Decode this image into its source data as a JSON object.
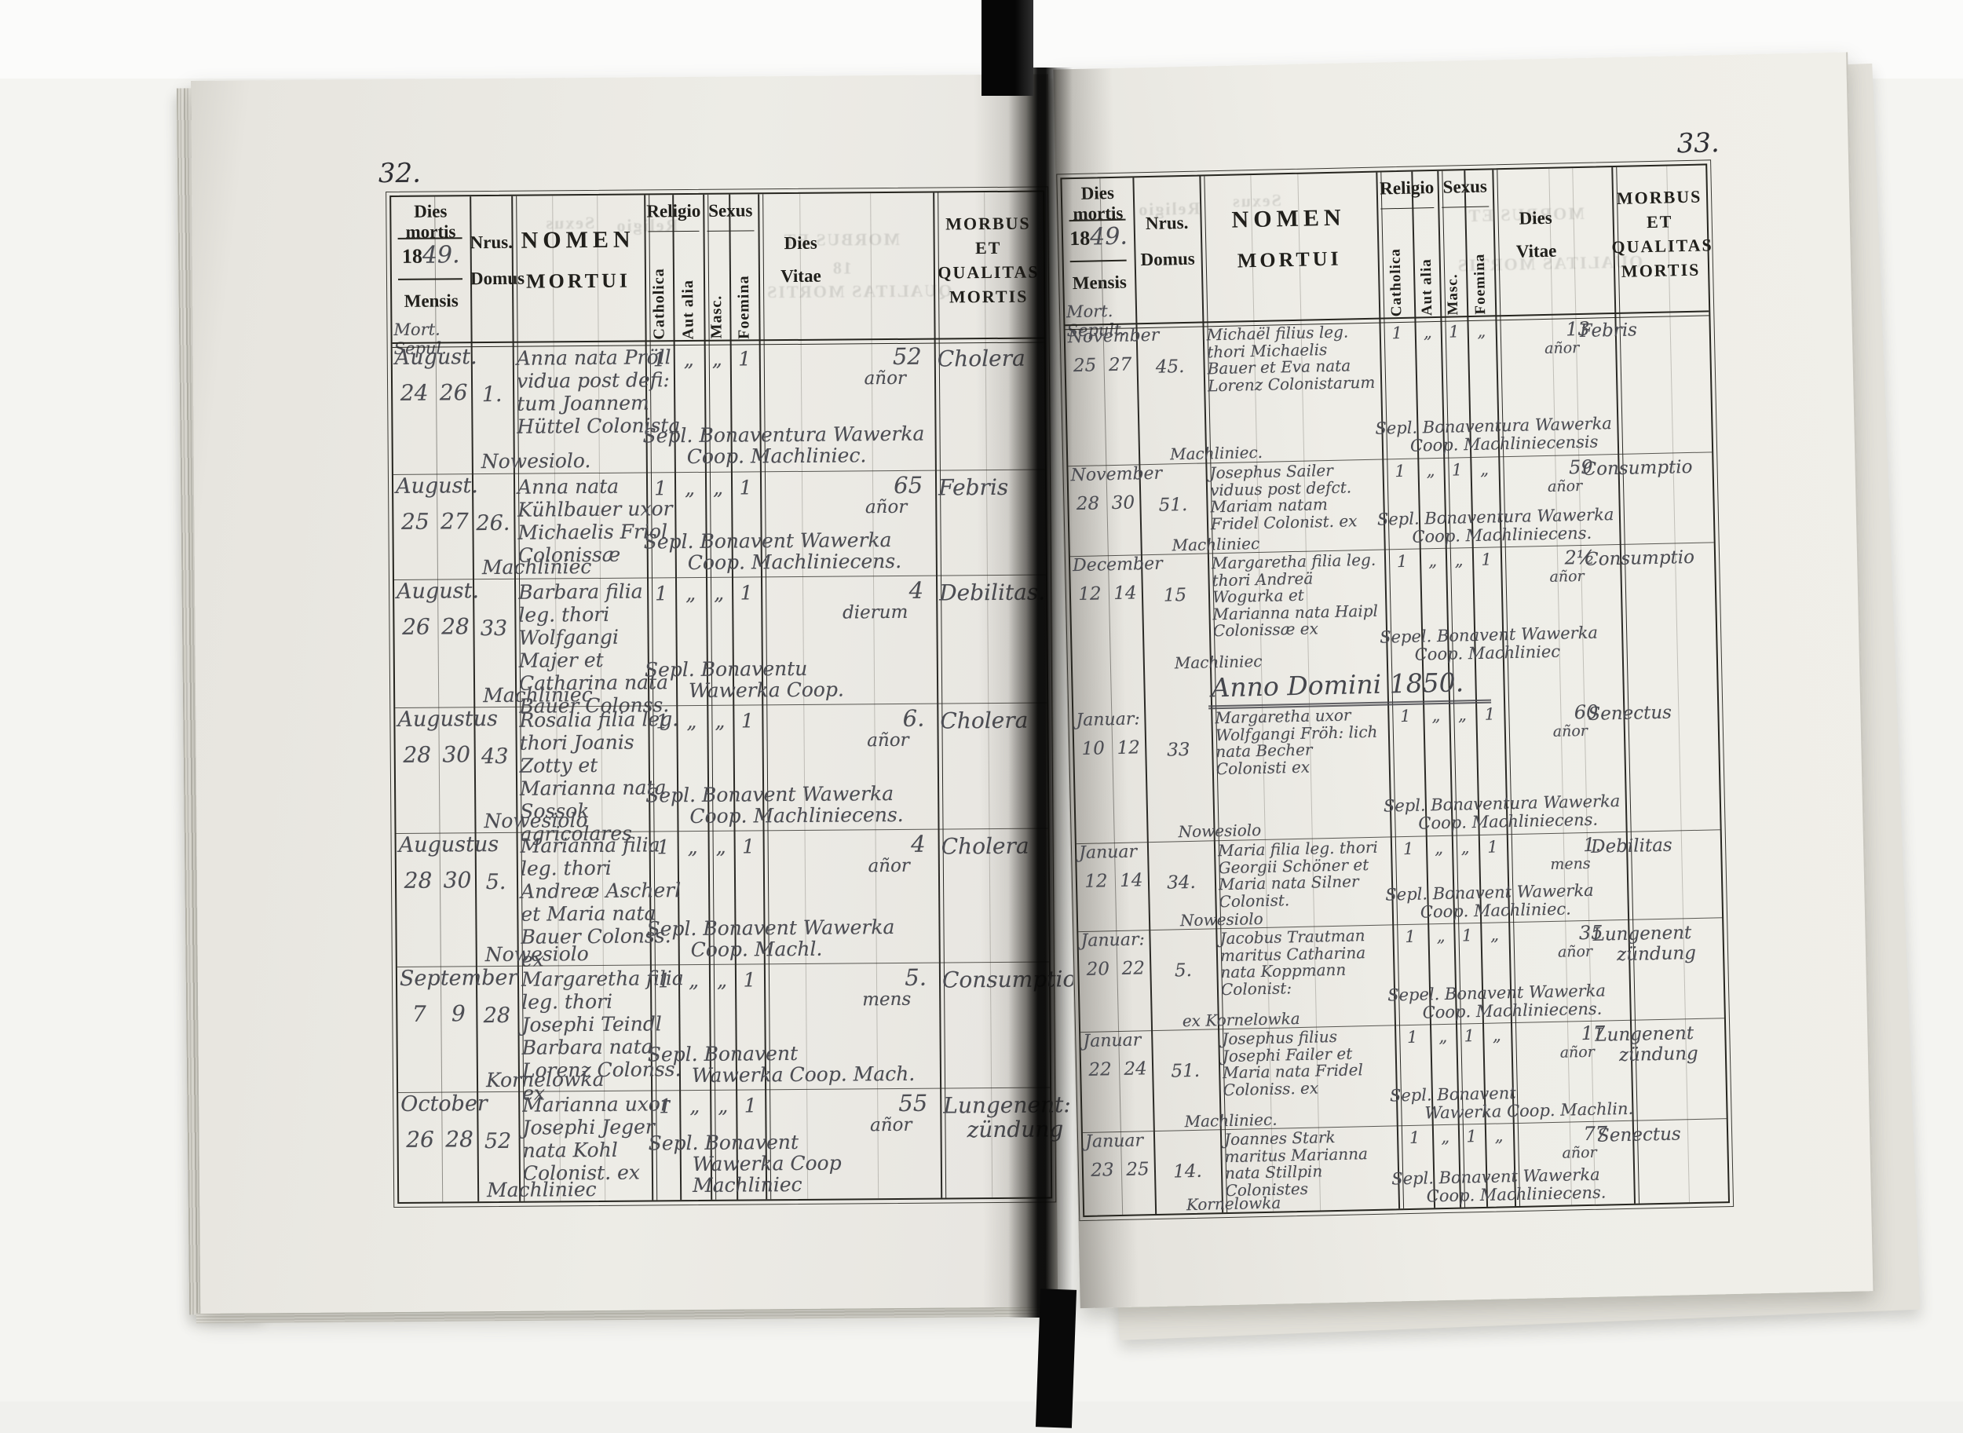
{
  "book": {
    "column_headers": {
      "dies_mortis": "Dies mortis",
      "year_printed": "18",
      "year_handwritten": "49.",
      "mensis": "Mensis",
      "nrus": "Nrus.",
      "domus": "Domus",
      "nomen": "NOMEN",
      "mortui": "MORTUI",
      "religio": "Religio",
      "catholica": "Catholica",
      "aut_alia": "Aut alia",
      "sexus": "Sexus",
      "masc": "Masc.",
      "foemina": "Foemina",
      "dies": "Dies",
      "vitae": "Vitae",
      "morbus_line1": "MORBUS",
      "morbus_line2": "ET",
      "morbus_line3": "QUALITAS",
      "morbus_line4": "MORTIS"
    },
    "left_page": {
      "page_number": "32.",
      "mort_sepul": "Mort. Sepul.",
      "ghosts": [
        "Sexus",
        "Religio",
        "MORBUS ET",
        "18",
        "QUALITAS MORTIS"
      ],
      "rows": [
        {
          "month": "August.",
          "death_day": "24",
          "burial_day": "26",
          "house": "1.",
          "name": "Anna nata Pröll vidua post defi: tum Joannem Hüttel Colonista",
          "place": "Nowesiolo.",
          "catholica": "1",
          "aut_alia": "„",
          "masc": "„",
          "foemina": "1",
          "age": "52",
          "age_unit": "añor",
          "disease": "Cholera",
          "burial": "Sepl. Bonaventura Wawerka\nCoop. Machliniec."
        },
        {
          "month": "August.",
          "death_day": "25",
          "burial_day": "27",
          "house": "26.",
          "name": "Anna nata Kühlbauer uxor Michaelis Friol Colonissæ",
          "place": "Machliniec",
          "catholica": "1",
          "aut_alia": "„",
          "masc": "„",
          "foemina": "1",
          "age": "65",
          "age_unit": "añor",
          "disease": "Febris",
          "burial": "Sepl. Bonavent Wawerka\nCoop. Machliniecens."
        },
        {
          "month": "August.",
          "death_day": "26",
          "burial_day": "28",
          "house": "33",
          "name": "Barbara filia leg. thori Wolfgangi Majer et Catharina nata Bauer Colonss.",
          "place": "Machliniec",
          "catholica": "1",
          "aut_alia": "„",
          "masc": "„",
          "foemina": "1",
          "age": "4",
          "age_unit": "dierum",
          "disease": "Debilitas.",
          "burial": "Sepl. Bonaventu\nWawerka Coop."
        },
        {
          "month": "Augustus",
          "death_day": "28",
          "burial_day": "30",
          "house": "43",
          "name": "Rosalia filia leg. thori Joanis Zotty et Marianna nata Sossok agricolares",
          "place": "Nowesiolo",
          "catholica": "1",
          "aut_alia": "„",
          "masc": "„",
          "foemina": "1",
          "age": "6.",
          "age_unit": "añor",
          "disease": "Cholera",
          "burial": "Sepl. Bonavent Wawerka\nCoop. Machliniecens."
        },
        {
          "month": "Augustus",
          "death_day": "28",
          "burial_day": "30",
          "house": "5.",
          "name": "Marianna filia leg. thori Andreæ Ascherl et Maria nata Bauer Colonss. ex",
          "place": "Nowesiolo",
          "catholica": "1",
          "aut_alia": "„",
          "masc": "„",
          "foemina": "1",
          "age": "4",
          "age_unit": "añor",
          "disease": "Cholera",
          "burial": "Sepl. Bonavent Wawerka\nCoop. Machl."
        },
        {
          "month": "September",
          "death_day": "7",
          "burial_day": "9",
          "house": "28",
          "name": "Margaretha filia leg. thori Josephi Teindl Barbara nata Lorenz Colonss. ex",
          "place": "Kornelowka",
          "catholica": "1",
          "aut_alia": "„",
          "masc": "„",
          "foemina": "1",
          "age": "5.",
          "age_unit": "mens",
          "disease": "Consumptio",
          "burial": "Sepl. Bonavent\nWawerka Coop. Mach."
        },
        {
          "month": "October",
          "death_day": "26",
          "burial_day": "28",
          "house": "52",
          "name": "Marianna uxor Josephi Jeger nata Kohl Colonist. ex",
          "place": "Machliniec",
          "catholica": "1",
          "aut_alia": "„",
          "masc": "„",
          "foemina": "1",
          "age": "55",
          "age_unit": "añor",
          "disease": "Lungenent:\nzündung",
          "burial": "Sepl. Bonavent\nWawerka Coop Machliniec"
        }
      ]
    },
    "right_page": {
      "page_number": "33.",
      "mort_sepul": "Mort. Sepult.",
      "year_divider": "Anno Domini 1850.",
      "ghosts": [
        "Religio",
        "Sexus",
        "MORBUS ET",
        "QUALITAS MORTIS"
      ],
      "rows_1849": [
        {
          "month": "November",
          "death_day": "25",
          "burial_day": "27",
          "house": "45.",
          "name": "Michaël filius leg. thori Michaelis Bauer et Eva nata Lorenz Colonistarum",
          "place": "Machliniec.",
          "catholica": "1",
          "aut_alia": "„",
          "masc": "1",
          "foemina": "„",
          "age": "13",
          "age_unit": "añor",
          "disease": "Febris",
          "burial": "Sepl. Bonaventura Wawerka\nCoop. Machliniecensis"
        },
        {
          "month": "November",
          "death_day": "28",
          "burial_day": "30",
          "house": "51.",
          "name": "Josephus Sailer viduus post defct. Mariam natam Fridel Colonist. ex",
          "place": "Machliniec",
          "catholica": "1",
          "aut_alia": "„",
          "masc": "1",
          "foemina": "„",
          "age": "59",
          "age_unit": "añor",
          "disease": "Consumptio",
          "burial": "Sepl. Bonaventura Wawerka\nCoop. Machliniecens."
        },
        {
          "month": "December",
          "death_day": "12",
          "burial_day": "14",
          "house": "15",
          "name": "Margaretha filia leg. thori Andreä Wogurka et Marianna nata Haipl Colonissæ ex",
          "place": "Machliniec",
          "catholica": "1",
          "aut_alia": "„",
          "masc": "„",
          "foemina": "1",
          "age": "2½",
          "age_unit": "añor",
          "disease": "Consumptio",
          "burial": "Sepel. Bonavent Wawerka\nCoop. Machliniec"
        }
      ],
      "rows_1850": [
        {
          "month": "Januar:",
          "death_day": "10",
          "burial_day": "12",
          "house": "33",
          "name": "Margaretha uxor Wolfgangi Fröh: lich nata Becher Colonisti ex",
          "place": "Nowesiolo",
          "catholica": "1",
          "aut_alia": "„",
          "masc": "„",
          "foemina": "1",
          "age": "60",
          "age_unit": "añor",
          "disease": "Senectus",
          "burial": "Sepl. Bonaventura Wawerka\nCoop. Machliniecens."
        },
        {
          "month": "Januar",
          "death_day": "12",
          "burial_day": "14",
          "house": "34.",
          "name": "Maria filia leg. thori Georgii Schöner et Maria nata Silner Colonist.",
          "place": "Nowesiolo",
          "catholica": "1",
          "aut_alia": "„",
          "masc": "„",
          "foemina": "1",
          "age": "1.",
          "age_unit": "mens",
          "disease": "Debilitas",
          "burial": "Sepl. Bonavent Wawerka\nCoop. Machliniec."
        },
        {
          "month": "Januar:",
          "death_day": "20",
          "burial_day": "22",
          "house": "5.",
          "name": "Jacobus Trautman maritus Catharina nata Koppmann Colonist:",
          "place": "ex Kornelowka",
          "catholica": "1",
          "aut_alia": "„",
          "masc": "1",
          "foemina": "„",
          "age": "35",
          "age_unit": "añor",
          "disease": "Lungenent\nzündung",
          "burial": "Sepel. Bonavent Wawerka\nCoop. Machliniecens."
        },
        {
          "month": "Januar",
          "death_day": "22",
          "burial_day": "24",
          "house": "51.",
          "name": "Josephus filius Josephi Failer et Maria nata Fridel Coloniss. ex",
          "place": "Machliniec.",
          "catholica": "1",
          "aut_alia": "„",
          "masc": "1",
          "foemina": "„",
          "age": "17",
          "age_unit": "añor",
          "disease": "Lungenent\nzündung",
          "burial": "Sepl. Bonavent\nWawerka Coop. Machlin."
        },
        {
          "month": "Januar",
          "death_day": "23",
          "burial_day": "25",
          "house": "14.",
          "name": "Joannes Stark maritus Marianna nata Stillpin Colonistes",
          "place": "Kornelowka",
          "catholica": "1",
          "aut_alia": "„",
          "masc": "1",
          "foemina": "„",
          "age": "77",
          "age_unit": "añor",
          "disease": "Senectus",
          "burial": "Sepl. Bonavent Wawerka\nCoop. Machliniecens."
        }
      ]
    }
  }
}
